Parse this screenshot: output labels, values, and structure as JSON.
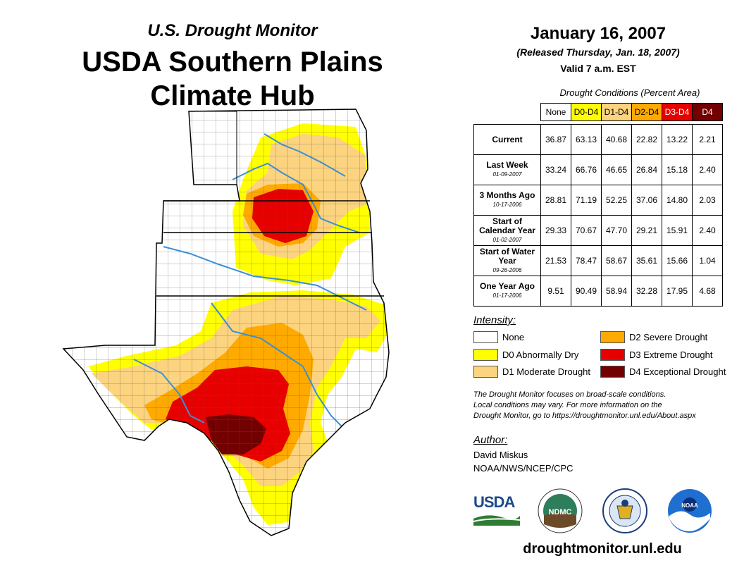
{
  "header": {
    "subtitle": "U.S. Drought Monitor",
    "title_line1": "USDA Southern Plains",
    "title_line2": "Climate Hub",
    "date": "January 16, 2007",
    "released": "(Released Thursday, Jan. 18, 2007)",
    "valid": "Valid 7 a.m. EST"
  },
  "colors": {
    "none": "#ffffff",
    "d0": "#ffff00",
    "d1": "#fcd37f",
    "d2": "#ffaa00",
    "d3": "#e60000",
    "d4": "#730000",
    "river": "#3b8fd6"
  },
  "table": {
    "caption": "Drought Conditions (Percent Area)",
    "columns": [
      "None",
      "D0-D4",
      "D1-D4",
      "D2-D4",
      "D3-D4",
      "D4"
    ],
    "rows": [
      {
        "label": "Current",
        "date": "",
        "values": [
          "36.87",
          "63.13",
          "40.68",
          "22.82",
          "13.22",
          "2.21"
        ]
      },
      {
        "label": "Last Week",
        "date": "01-09-2007",
        "values": [
          "33.24",
          "66.76",
          "46.65",
          "26.84",
          "15.18",
          "2.40"
        ]
      },
      {
        "label": "3 Months Ago",
        "date": "10-17-2006",
        "values": [
          "28.81",
          "71.19",
          "52.25",
          "37.06",
          "14.80",
          "2.03"
        ]
      },
      {
        "label": "Start of Calendar Year",
        "date": "01-02-2007",
        "values": [
          "29.33",
          "70.67",
          "47.70",
          "29.21",
          "15.91",
          "2.40"
        ]
      },
      {
        "label": "Start of Water Year",
        "date": "09-26-2006",
        "values": [
          "21.53",
          "78.47",
          "58.67",
          "35.61",
          "15.66",
          "1.04"
        ]
      },
      {
        "label": "One Year Ago",
        "date": "01-17-2006",
        "values": [
          "9.51",
          "90.49",
          "58.94",
          "32.28",
          "17.95",
          "4.68"
        ]
      }
    ]
  },
  "legend": {
    "title": "Intensity:",
    "items": [
      {
        "label": "None"
      },
      {
        "label": "D0 Abnormally Dry"
      },
      {
        "label": "D1 Moderate Drought"
      },
      {
        "label": "D2 Severe Drought"
      },
      {
        "label": "D3 Extreme Drought"
      },
      {
        "label": "D4 Exceptional Drought"
      }
    ]
  },
  "note": {
    "line1": "The Drought Monitor focuses on broad-scale conditions.",
    "line2": "Local conditions may vary. For more information on the",
    "line3": "Drought Monitor, go to https://droughtmonitor.unl.edu/About.aspx"
  },
  "author": {
    "label": "Author:",
    "name": "David Miskus",
    "org": "NOAA/NWS/NCEP/CPC"
  },
  "logos": {
    "usda": "USDA",
    "ndmc": "NDMC",
    "noaa": "NOAA"
  },
  "footer": {
    "website": "droughtmonitor.unl.edu"
  }
}
